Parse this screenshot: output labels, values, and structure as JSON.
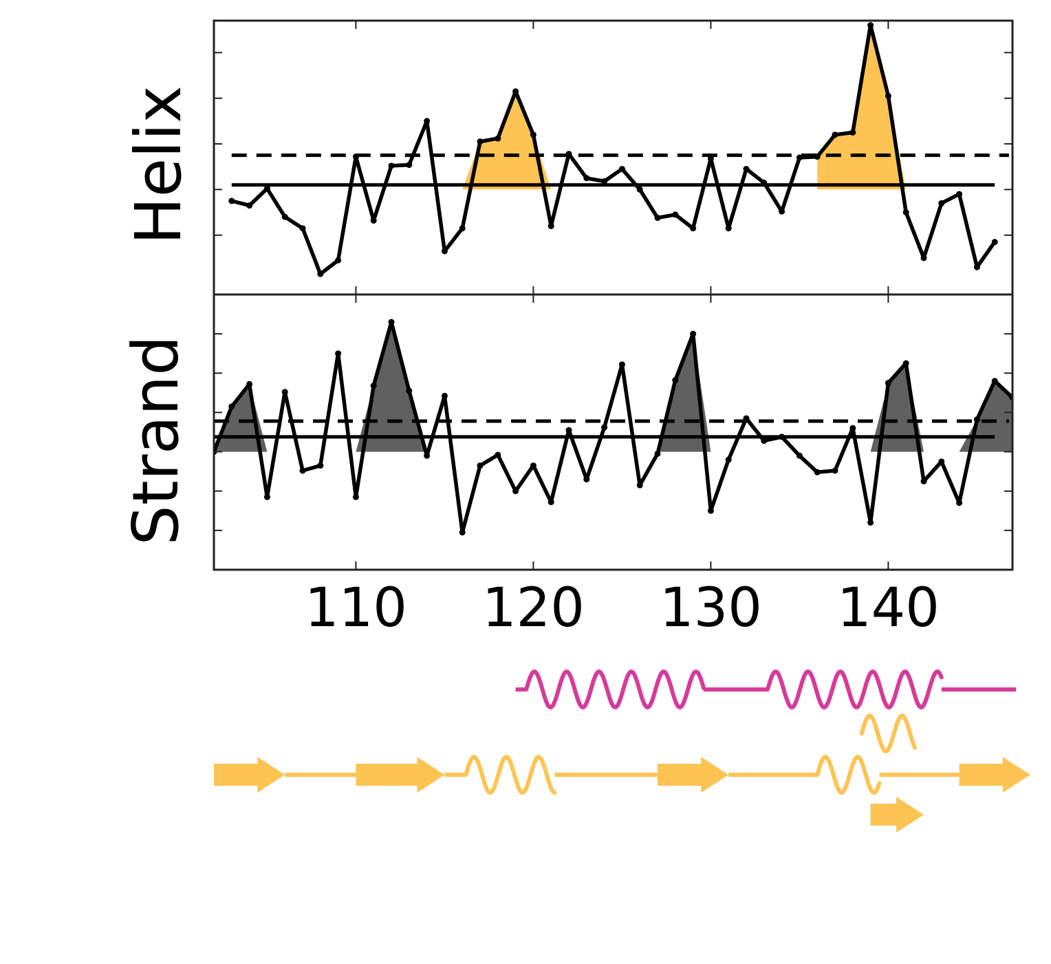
{
  "colors": {
    "helix_fill": "#fdc453",
    "strand_fill": "#606060",
    "line": "#000000",
    "magenta": "#d63b9a",
    "orange": "#fdc453",
    "frame": "#222222"
  },
  "chart_data": [
    {
      "type": "line",
      "panel": "helix",
      "ylabel": "Helix",
      "xlim": [
        102,
        147
      ],
      "ylim": [
        -2.3,
        3.7
      ],
      "y_ticks": [
        -1,
        0,
        1,
        2,
        3
      ],
      "tick_labels_y_shown": false,
      "threshold_solid": 0.1,
      "threshold_dashed": 0.75,
      "grid": false,
      "x": [
        103,
        104,
        105,
        106,
        107,
        108,
        109,
        110,
        111,
        112,
        113,
        114,
        115,
        116,
        117,
        118,
        119,
        120,
        121,
        122,
        123,
        124,
        125,
        126,
        127,
        128,
        129,
        130,
        131,
        132,
        133,
        134,
        135,
        136,
        137,
        138,
        139,
        140,
        141,
        142,
        143,
        144,
        145,
        146
      ],
      "values": [
        -0.25,
        -0.35,
        0.02,
        -0.6,
        -0.85,
        -1.85,
        -1.55,
        0.72,
        -0.68,
        0.52,
        0.54,
        1.5,
        -1.35,
        -0.85,
        1.05,
        1.12,
        2.15,
        1.2,
        -0.8,
        0.78,
        0.25,
        0.18,
        0.45,
        0.0,
        -0.62,
        -0.55,
        -0.85,
        0.68,
        -0.85,
        0.45,
        0.15,
        -0.48,
        0.7,
        0.72,
        1.2,
        1.25,
        3.6,
        2.05,
        -0.5,
        -1.5,
        -0.3,
        -0.1,
        -1.7,
        -1.15
      ],
      "filled_regions": [
        [
          116,
          121
        ],
        [
          136,
          141
        ]
      ]
    },
    {
      "type": "line",
      "panel": "strand",
      "ylabel": "Strand",
      "xlim": [
        102,
        147
      ],
      "ylim": [
        -3.0,
        4.0
      ],
      "y_ticks": [
        -2,
        -1,
        0,
        1,
        2,
        3
      ],
      "tick_labels_y_shown": false,
      "threshold_solid": 0.38,
      "threshold_dashed": 0.78,
      "grid": false,
      "x": [
        102,
        103,
        104,
        105,
        106,
        107,
        108,
        109,
        110,
        111,
        112,
        113,
        114,
        115,
        116,
        117,
        118,
        119,
        120,
        121,
        122,
        123,
        124,
        125,
        126,
        127,
        128,
        129,
        130,
        131,
        132,
        133,
        134,
        135,
        136,
        137,
        138,
        139,
        140,
        141,
        142,
        143,
        144,
        145,
        146,
        147
      ],
      "values": [
        0.0,
        1.15,
        1.72,
        -1.15,
        1.52,
        -0.48,
        -0.35,
        2.5,
        -1.15,
        1.68,
        3.3,
        1.55,
        -0.1,
        1.42,
        -2.05,
        -0.35,
        -0.08,
        -1.0,
        -0.35,
        -1.28,
        0.55,
        -0.7,
        0.62,
        2.22,
        -0.85,
        -0.05,
        1.82,
        3.0,
        -1.5,
        -0.2,
        0.85,
        0.28,
        0.38,
        -0.1,
        -0.52,
        -0.48,
        0.6,
        -1.8,
        1.75,
        2.25,
        -0.75,
        -0.25,
        -1.3,
        0.82,
        1.8,
        1.38
      ],
      "filled_regions": [
        [
          102,
          105
        ],
        [
          110,
          114
        ],
        [
          127,
          130
        ],
        [
          139,
          142
        ],
        [
          144,
          147
        ]
      ]
    }
  ],
  "x_tick_labels": [
    "110",
    "120",
    "130",
    "140"
  ],
  "x_ticks": [
    110,
    120,
    130,
    140
  ],
  "secondary_structure_tracks": [
    {
      "name": "magenta-track",
      "color": "magenta",
      "elements": [
        {
          "kind": "coil",
          "from": 119.0,
          "to": 119.6
        },
        {
          "kind": "helix",
          "from": 119.6,
          "to": 129.6
        },
        {
          "kind": "coil",
          "from": 129.6,
          "to": 133.2
        },
        {
          "kind": "helix",
          "from": 133.2,
          "to": 143.0
        },
        {
          "kind": "coil",
          "from": 143.0,
          "to": 147.2
        }
      ]
    },
    {
      "name": "orange-track-1",
      "color": "orange",
      "elements": [
        {
          "kind": "helix",
          "from": 138.5,
          "to": 141.5
        }
      ]
    },
    {
      "name": "orange-track-2",
      "color": "orange",
      "elements": [
        {
          "kind": "strand",
          "from": 102.0,
          "to": 106.0
        },
        {
          "kind": "coil",
          "from": 106.0,
          "to": 110.0
        },
        {
          "kind": "strand",
          "from": 110.0,
          "to": 115.0
        },
        {
          "kind": "coil",
          "from": 115.0,
          "to": 116.2
        },
        {
          "kind": "helix",
          "from": 116.2,
          "to": 121.2
        },
        {
          "kind": "coil",
          "from": 121.2,
          "to": 127.0
        },
        {
          "kind": "strand",
          "from": 127.0,
          "to": 131.0
        },
        {
          "kind": "coil",
          "from": 131.0,
          "to": 136.0
        },
        {
          "kind": "helix",
          "from": 136.0,
          "to": 139.5
        },
        {
          "kind": "coil",
          "from": 139.5,
          "to": 144.0
        },
        {
          "kind": "strand",
          "from": 144.0,
          "to": 148.0
        }
      ]
    },
    {
      "name": "orange-track-3",
      "color": "orange",
      "elements": [
        {
          "kind": "strand",
          "from": 139.0,
          "to": 142.0
        }
      ]
    }
  ]
}
